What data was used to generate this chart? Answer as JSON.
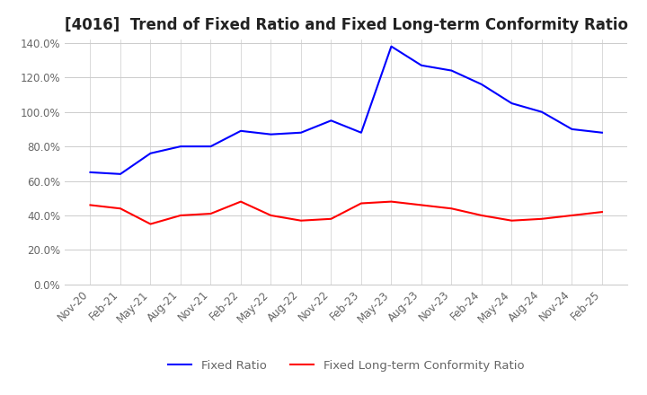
{
  "title": "[4016]  Trend of Fixed Ratio and Fixed Long-term Conformity Ratio",
  "x_labels": [
    "Nov-20",
    "Feb-21",
    "May-21",
    "Aug-21",
    "Nov-21",
    "Feb-22",
    "May-22",
    "Aug-22",
    "Nov-22",
    "Feb-23",
    "May-23",
    "Aug-23",
    "Nov-23",
    "Feb-24",
    "May-24",
    "Aug-24",
    "Nov-24",
    "Feb-25"
  ],
  "fixed_ratio": [
    65.0,
    64.0,
    76.0,
    80.0,
    80.0,
    89.0,
    87.0,
    88.0,
    95.0,
    88.0,
    138.0,
    127.0,
    124.0,
    116.0,
    105.0,
    100.0,
    90.0,
    88.0
  ],
  "fixed_lt_ratio": [
    46.0,
    44.0,
    35.0,
    40.0,
    41.0,
    48.0,
    40.0,
    37.0,
    38.0,
    47.0,
    48.0,
    46.0,
    44.0,
    40.0,
    37.0,
    38.0,
    40.0,
    42.0
  ],
  "fixed_ratio_color": "#0000FF",
  "fixed_lt_ratio_color": "#FF0000",
  "ylim": [
    0,
    140
  ],
  "ytick_step": 20,
  "background_color": "#FFFFFF",
  "grid_color": "#CCCCCC",
  "title_fontsize": 12,
  "axis_fontsize": 8.5,
  "legend_fontsize": 9.5,
  "tick_color": "#666666"
}
